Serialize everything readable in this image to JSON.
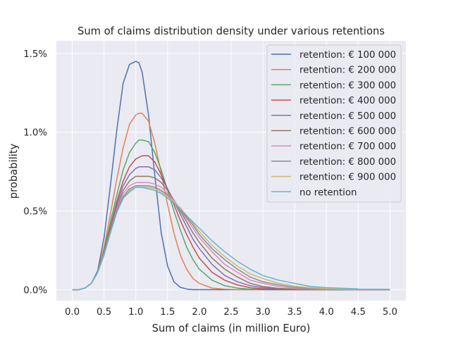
{
  "chart_data": {
    "type": "line",
    "title": "Sum of claims distribution density under various retentions",
    "xlabel": "Sum of claims (in million Euro)",
    "ylabel": "probability",
    "xlim": [
      -0.25,
      5.25
    ],
    "ylim": [
      -0.0007,
      0.0158
    ],
    "x_ticks": [
      0,
      0.5,
      1,
      1.5,
      2,
      2.5,
      3,
      3.5,
      4,
      4.5,
      5
    ],
    "x_tick_labels": [
      "0.0",
      "0.5",
      "1.0",
      "1.5",
      "2.0",
      "2.5",
      "3.0",
      "3.5",
      "4.0",
      "4.5",
      "5.0"
    ],
    "y_ticks": [
      0,
      0.005,
      0.01,
      0.015
    ],
    "y_tick_labels": [
      "0.0%",
      "0.5%",
      "1.0%",
      "1.5%"
    ],
    "grid": true,
    "background": "#eaeaf2",
    "legend_position": "top-right",
    "x": [
      0.0,
      0.1,
      0.2,
      0.3,
      0.4,
      0.5,
      0.6,
      0.7,
      0.8,
      0.9,
      1.0,
      1.05,
      1.1,
      1.2,
      1.3,
      1.4,
      1.5,
      1.6,
      1.7,
      1.8,
      1.9,
      2.0,
      2.2,
      2.4,
      2.6,
      2.8,
      3.0,
      3.25,
      3.5,
      3.75,
      4.0,
      4.5,
      5.0
    ],
    "series": [
      {
        "name": "retention: € 100 000",
        "color": "#4c72b0",
        "values": [
          0,
          0,
          0.0001,
          0.0004,
          0.0012,
          0.0033,
          0.0066,
          0.0101,
          0.0131,
          0.0143,
          0.0145,
          0.0144,
          0.0138,
          0.0111,
          0.0072,
          0.0036,
          0.0015,
          0.0005,
          0.00015,
          4e-05,
          0,
          0,
          0,
          0,
          0,
          0,
          0,
          0,
          0,
          0,
          0,
          0,
          0
        ]
      },
      {
        "name": "retention: € 200 000",
        "color": "#dd8452",
        "values": [
          0,
          0,
          0.0001,
          0.0004,
          0.0011,
          0.0027,
          0.0048,
          0.007,
          0.009,
          0.0105,
          0.0111,
          0.0112,
          0.0112,
          0.0107,
          0.0093,
          0.0074,
          0.0054,
          0.0036,
          0.0022,
          0.0013,
          0.0007,
          0.0004,
          0.0001,
          3e-05,
          0,
          0,
          0,
          0,
          0,
          0,
          0,
          0,
          0
        ]
      },
      {
        "name": "retention: € 300 000",
        "color": "#55a868",
        "values": [
          0,
          0,
          0.0001,
          0.0004,
          0.0011,
          0.0025,
          0.0043,
          0.006,
          0.0076,
          0.0087,
          0.0093,
          0.0095,
          0.0095,
          0.0094,
          0.0087,
          0.0076,
          0.0063,
          0.005,
          0.0038,
          0.0027,
          0.0019,
          0.0013,
          0.0006,
          0.00025,
          0.0001,
          3e-05,
          0,
          0,
          0,
          0,
          0,
          0,
          0
        ]
      },
      {
        "name": "retention: € 400 000",
        "color": "#c44e52",
        "values": [
          0,
          0,
          0.0001,
          0.0004,
          0.0011,
          0.0024,
          0.004,
          0.0056,
          0.0069,
          0.0078,
          0.0083,
          0.0084,
          0.0085,
          0.0085,
          0.0081,
          0.0073,
          0.0064,
          0.0054,
          0.0044,
          0.0035,
          0.0027,
          0.002,
          0.0011,
          0.0006,
          0.0003,
          0.00012,
          5e-05,
          1e-05,
          0,
          0,
          0,
          0,
          0
        ]
      },
      {
        "name": "retention: € 500 000",
        "color": "#8172b3",
        "values": [
          0,
          0,
          0.0001,
          0.0004,
          0.0011,
          0.0023,
          0.0039,
          0.0054,
          0.0066,
          0.0073,
          0.0077,
          0.0078,
          0.0078,
          0.0078,
          0.0076,
          0.0071,
          0.0064,
          0.0056,
          0.0048,
          0.004,
          0.0032,
          0.0026,
          0.0016,
          0.0009,
          0.0005,
          0.00025,
          0.00012,
          4e-05,
          1e-05,
          0,
          0,
          0,
          0
        ]
      },
      {
        "name": "retention: € 600 000",
        "color": "#937860",
        "values": [
          0,
          0,
          0.0001,
          0.0004,
          0.0011,
          0.0023,
          0.0038,
          0.0052,
          0.0063,
          0.0069,
          0.0072,
          0.0072,
          0.0072,
          0.0072,
          0.0071,
          0.0068,
          0.0063,
          0.0057,
          0.005,
          0.0043,
          0.0036,
          0.003,
          0.002,
          0.0013,
          0.0008,
          0.0004,
          0.0002,
          8e-05,
          3e-05,
          1e-05,
          0,
          0,
          0
        ]
      },
      {
        "name": "retention: € 700 000",
        "color": "#da8bc3",
        "values": [
          0,
          0,
          0.0001,
          0.0004,
          0.0011,
          0.0023,
          0.0037,
          0.0051,
          0.0061,
          0.0066,
          0.0068,
          0.0068,
          0.0068,
          0.0068,
          0.0067,
          0.0065,
          0.0061,
          0.0057,
          0.0051,
          0.0045,
          0.0039,
          0.0033,
          0.0024,
          0.0016,
          0.0011,
          0.0006,
          0.0004,
          0.0002,
          8e-05,
          3e-05,
          1e-05,
          0,
          0
        ]
      },
      {
        "name": "retention: € 800 000",
        "color": "#8c8c8c",
        "values": [
          0,
          0,
          0.0001,
          0.0004,
          0.0011,
          0.0022,
          0.0037,
          0.005,
          0.0059,
          0.0064,
          0.0066,
          0.0066,
          0.0066,
          0.0066,
          0.0065,
          0.0063,
          0.006,
          0.0056,
          0.0051,
          0.0046,
          0.0041,
          0.0035,
          0.0026,
          0.0019,
          0.0013,
          0.0008,
          0.0005,
          0.0003,
          0.00015,
          7e-05,
          3e-05,
          1e-05,
          0
        ]
      },
      {
        "name": "retention: € 900 000",
        "color": "#ccb974",
        "values": [
          0,
          0,
          0.0001,
          0.0004,
          0.0011,
          0.0022,
          0.0036,
          0.0049,
          0.0058,
          0.0063,
          0.0065,
          0.0065,
          0.0065,
          0.0065,
          0.0064,
          0.0062,
          0.0059,
          0.0056,
          0.0052,
          0.0047,
          0.0042,
          0.0037,
          0.0028,
          0.0021,
          0.0015,
          0.001,
          0.0007,
          0.0004,
          0.00022,
          0.00012,
          6e-05,
          2e-05,
          1e-05
        ]
      },
      {
        "name": "no retention",
        "color": "#64b5cd",
        "values": [
          0,
          0,
          0.0001,
          0.0004,
          0.0011,
          0.0022,
          0.0036,
          0.0049,
          0.0058,
          0.0062,
          0.0065,
          0.0065,
          0.0065,
          0.0064,
          0.0063,
          0.0061,
          0.0058,
          0.0055,
          0.0051,
          0.0047,
          0.0043,
          0.0039,
          0.0031,
          0.0024,
          0.0018,
          0.0013,
          0.0009,
          0.0006,
          0.0004,
          0.0002,
          0.00013,
          5e-05,
          2e-05
        ]
      }
    ]
  }
}
